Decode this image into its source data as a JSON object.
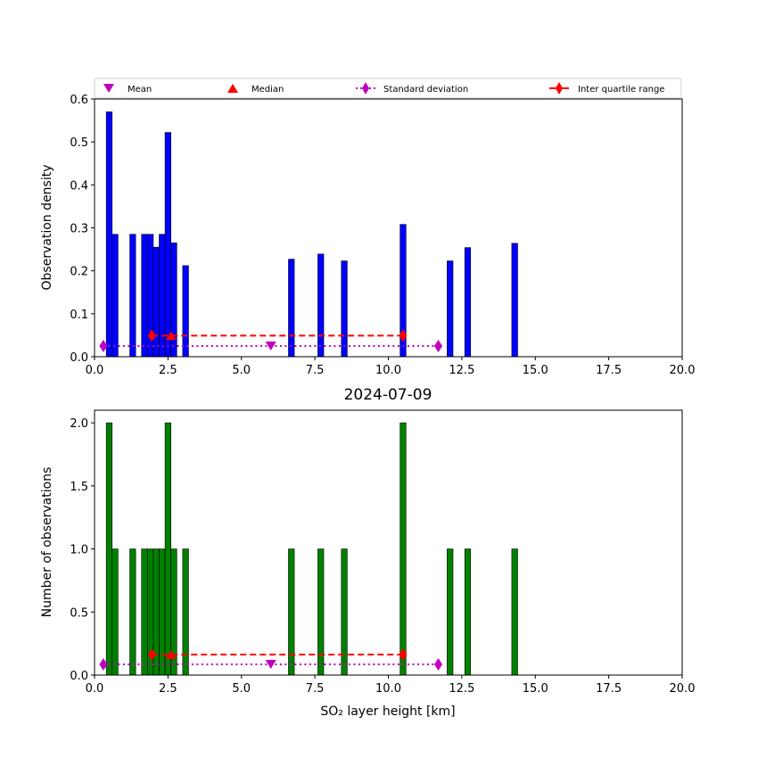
{
  "chart_data": [
    {
      "type": "bar",
      "panel": "top",
      "title": "",
      "xlabel": "",
      "ylabel": "Observation density",
      "xlim": [
        0,
        20
      ],
      "ylim": [
        0,
        0.6
      ],
      "xticks": [
        "0.0",
        "2.5",
        "5.0",
        "7.5",
        "10.0",
        "12.5",
        "15.0",
        "17.5",
        "20.0"
      ],
      "yticks": [
        "0.0",
        "0.1",
        "0.2",
        "0.3",
        "0.4",
        "0.5",
        "0.6"
      ],
      "bar_color": "#0000ff",
      "bar_width": 0.2,
      "bars": [
        {
          "x": 0.5,
          "value": 0.57
        },
        {
          "x": 0.7,
          "value": 0.285
        },
        {
          "x": 1.3,
          "value": 0.285
        },
        {
          "x": 1.7,
          "value": 0.285
        },
        {
          "x": 1.9,
          "value": 0.285
        },
        {
          "x": 2.1,
          "value": 0.255
        },
        {
          "x": 2.3,
          "value": 0.285
        },
        {
          "x": 2.5,
          "value": 0.522
        },
        {
          "x": 2.7,
          "value": 0.265
        },
        {
          "x": 3.1,
          "value": 0.212
        },
        {
          "x": 6.7,
          "value": 0.227
        },
        {
          "x": 7.7,
          "value": 0.239
        },
        {
          "x": 8.5,
          "value": 0.223
        },
        {
          "x": 10.5,
          "value": 0.308
        },
        {
          "x": 12.1,
          "value": 0.223
        },
        {
          "x": 12.7,
          "value": 0.254
        },
        {
          "x": 14.3,
          "value": 0.264
        }
      ],
      "stats": {
        "mean": {
          "x": 6.0,
          "y": 0.025
        },
        "median": {
          "x": 2.6,
          "y": 0.049
        },
        "std_range": {
          "x": [
            0.3,
            11.7
          ],
          "y": 0.025
        },
        "iqr_range": {
          "x": [
            1.95,
            10.5
          ],
          "y": 0.049
        }
      },
      "legend": {
        "position": "above-plot",
        "entries": [
          {
            "label": "Mean",
            "marker": "triangle-down",
            "color": "#bf00bf"
          },
          {
            "label": "Median",
            "marker": "triangle-up",
            "color": "#ff0000"
          },
          {
            "label": "Standard deviation",
            "marker": "diamond",
            "linestyle": "dotted",
            "color": "#bf00bf"
          },
          {
            "label": "Inter quartile range",
            "marker": "diamond",
            "linestyle": "dashed",
            "color": "#ff0000"
          }
        ]
      }
    },
    {
      "type": "bar",
      "panel": "bottom",
      "title": "2024-07-09",
      "xlabel": "SO₂ layer height [km]",
      "ylabel": "Number of observations",
      "xlim": [
        0,
        20
      ],
      "ylim": [
        0,
        2.1
      ],
      "xticks": [
        "0.0",
        "2.5",
        "5.0",
        "7.5",
        "10.0",
        "12.5",
        "15.0",
        "17.5",
        "20.0"
      ],
      "yticks": [
        "0.0",
        "0.5",
        "1.0",
        "1.5",
        "2.0"
      ],
      "bar_color": "#008000",
      "bar_width": 0.2,
      "bars": [
        {
          "x": 0.5,
          "value": 2
        },
        {
          "x": 0.7,
          "value": 1
        },
        {
          "x": 1.3,
          "value": 1
        },
        {
          "x": 1.7,
          "value": 1
        },
        {
          "x": 1.9,
          "value": 1
        },
        {
          "x": 2.1,
          "value": 1
        },
        {
          "x": 2.3,
          "value": 1
        },
        {
          "x": 2.5,
          "value": 2
        },
        {
          "x": 2.7,
          "value": 1
        },
        {
          "x": 3.1,
          "value": 1
        },
        {
          "x": 6.7,
          "value": 1
        },
        {
          "x": 7.7,
          "value": 1
        },
        {
          "x": 8.5,
          "value": 1
        },
        {
          "x": 10.5,
          "value": 2
        },
        {
          "x": 12.1,
          "value": 1
        },
        {
          "x": 12.7,
          "value": 1
        },
        {
          "x": 14.3,
          "value": 1
        }
      ],
      "stats": {
        "mean": {
          "x": 6.0,
          "y": 0.085
        },
        "median": {
          "x": 2.6,
          "y": 0.163
        },
        "std_range": {
          "x": [
            0.3,
            11.7
          ],
          "y": 0.085
        },
        "iqr_range": {
          "x": [
            1.95,
            10.5
          ],
          "y": 0.163
        }
      }
    }
  ]
}
